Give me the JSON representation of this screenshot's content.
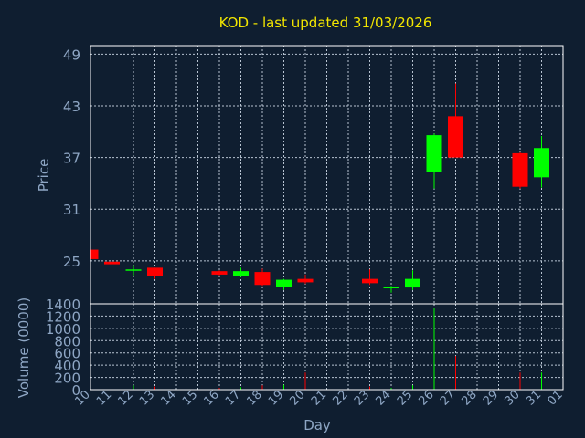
{
  "chart_data": {
    "type": "candlestick",
    "title": "KOD - last updated 31/03/2026",
    "ylabel": "Price",
    "xlabel": "Day",
    "volume_label": "Volume (0000)",
    "grid": true,
    "up_color": "#00ff00",
    "down_color": "#ff0000",
    "price_ylim": [
      20,
      50
    ],
    "price_ticks": [
      "25",
      "31",
      "37",
      "43",
      "49"
    ],
    "volume_ylim": [
      0,
      1400
    ],
    "volume_ticks": [
      "0",
      "200",
      "400",
      "600",
      "800",
      "1000",
      "1200",
      "1400"
    ],
    "x_ticks": [
      "10",
      "11",
      "12",
      "13",
      "14",
      "15",
      "16",
      "17",
      "18",
      "19",
      "20",
      "21",
      "22",
      "23",
      "24",
      "25",
      "26",
      "27",
      "28",
      "29",
      "30",
      "31",
      "01"
    ],
    "candles": [
      {
        "day": "10",
        "open": 26.3,
        "close": 25.2,
        "high": 26.3,
        "low": 25.2,
        "volume": 30
      },
      {
        "day": "11",
        "open": 24.9,
        "close": 24.6,
        "high": 25.4,
        "low": 24.3,
        "volume": 60
      },
      {
        "day": "12",
        "open": 23.9,
        "close": 24.0,
        "high": 24.5,
        "low": 23.3,
        "volume": 70
      },
      {
        "day": "13",
        "open": 24.2,
        "close": 23.2,
        "high": 24.2,
        "low": 22.9,
        "volume": 50
      },
      {
        "day": "16",
        "open": 23.8,
        "close": 23.4,
        "high": 23.9,
        "low": 23.3,
        "volume": 30
      },
      {
        "day": "17",
        "open": 23.2,
        "close": 23.8,
        "high": 24.2,
        "low": 23.1,
        "volume": 40
      },
      {
        "day": "18",
        "open": 23.7,
        "close": 22.2,
        "high": 24.1,
        "low": 22.1,
        "volume": 70
      },
      {
        "day": "19",
        "open": 22.0,
        "close": 22.8,
        "high": 22.9,
        "low": 21.6,
        "volume": 80
      },
      {
        "day": "20",
        "open": 22.9,
        "close": 22.5,
        "high": 23.4,
        "low": 22.3,
        "volume": 280
      },
      {
        "day": "23",
        "open": 22.9,
        "close": 22.4,
        "high": 24.0,
        "low": 22.2,
        "volume": 50
      },
      {
        "day": "24",
        "open": 21.8,
        "close": 22.0,
        "high": 22.1,
        "low": 21.3,
        "volume": 30
      },
      {
        "day": "25",
        "open": 21.9,
        "close": 22.9,
        "high": 23.9,
        "low": 21.6,
        "volume": 70
      },
      {
        "day": "26",
        "open": 35.3,
        "close": 39.6,
        "high": 39.8,
        "low": 33.4,
        "volume": 1330
      },
      {
        "day": "27",
        "open": 41.8,
        "close": 37.0,
        "high": 45.6,
        "low": 37.0,
        "volume": 550
      },
      {
        "day": "30",
        "open": 37.5,
        "close": 33.6,
        "high": 37.6,
        "low": 33.4,
        "volume": 280
      },
      {
        "day": "31",
        "open": 34.7,
        "close": 38.1,
        "high": 39.5,
        "low": 33.5,
        "volume": 280
      }
    ]
  }
}
